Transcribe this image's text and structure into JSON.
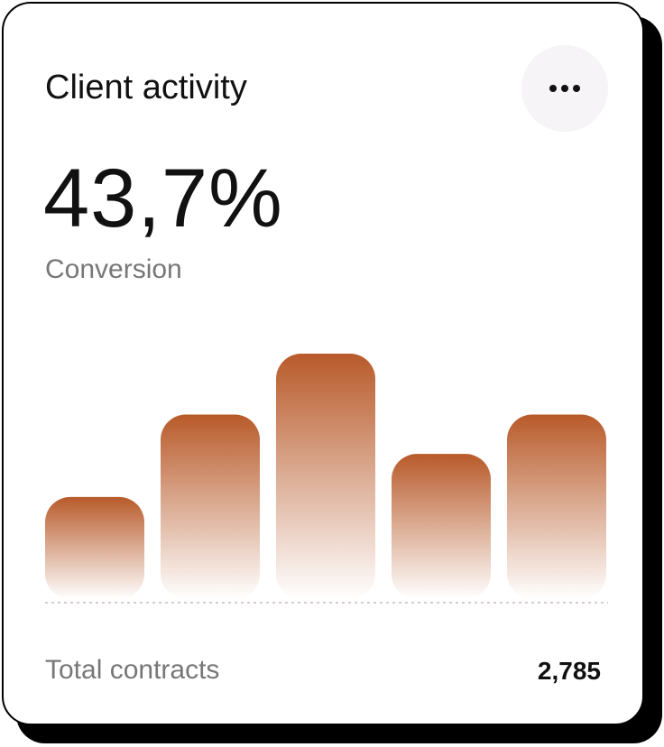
{
  "card": {
    "title": "Client activity",
    "metric": "43,7%",
    "metric_label": "Conversion"
  },
  "chart_data": {
    "type": "bar",
    "values": [
      114,
      206,
      274,
      162,
      206
    ],
    "color": "#b85a2a"
  },
  "footer": {
    "label": "Total contracts",
    "value": "2,785"
  }
}
